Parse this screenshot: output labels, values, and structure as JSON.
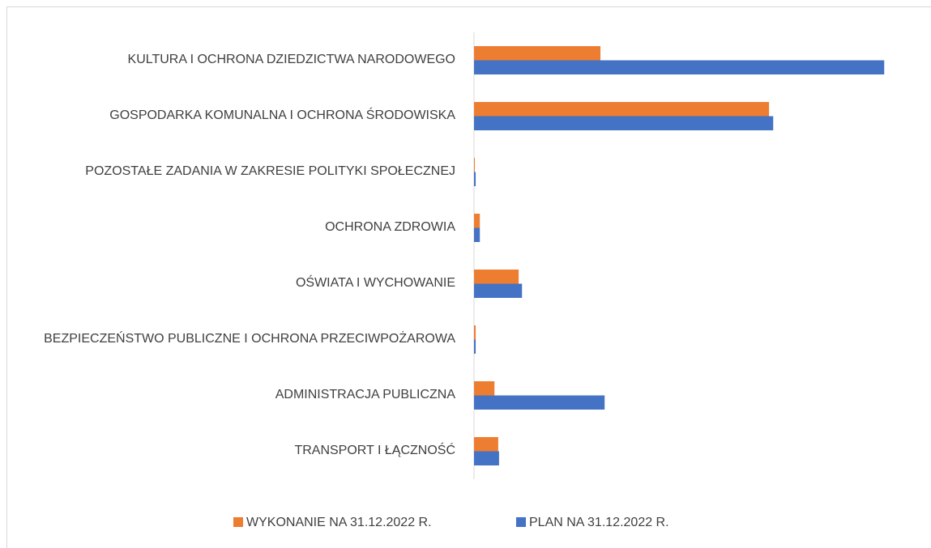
{
  "chart_data": {
    "type": "bar",
    "orientation": "horizontal",
    "categories": [
      "KULTURA I OCHRONA DZIEDZICTWA NARODOWEGO",
      "GOSPODARKA KOMUNALNA I OCHRONA ŚRODOWISKA",
      "POZOSTAŁE ZADANIA W ZAKRESIE POLITYKI SPOŁECZNEJ",
      "OCHRONA ZDROWIA",
      "OŚWIATA I WYCHOWANIE",
      "BEZPIECZEŃSTWO PUBLICZNE I OCHRONA PRZECIWPOŻAROWA",
      "ADMINISTRACJA PUBLICZNA",
      "TRANSPORT I ŁĄCZNOŚĆ"
    ],
    "series": [
      {
        "name": "WYKONANIE NA 31.12.2022 R.",
        "color": "#ED7D31",
        "values": [
          30.3,
          70.7,
          0.2,
          1.4,
          10.7,
          0.4,
          4.9,
          5.8
        ]
      },
      {
        "name": "PLAN NA 31.12.2022 R.",
        "color": "#4472C4",
        "values": [
          98.3,
          71.7,
          0.4,
          1.4,
          11.5,
          0.4,
          31.3,
          6.0
        ]
      }
    ],
    "xlim": [
      0,
      100
    ],
    "legend": "bottom"
  }
}
